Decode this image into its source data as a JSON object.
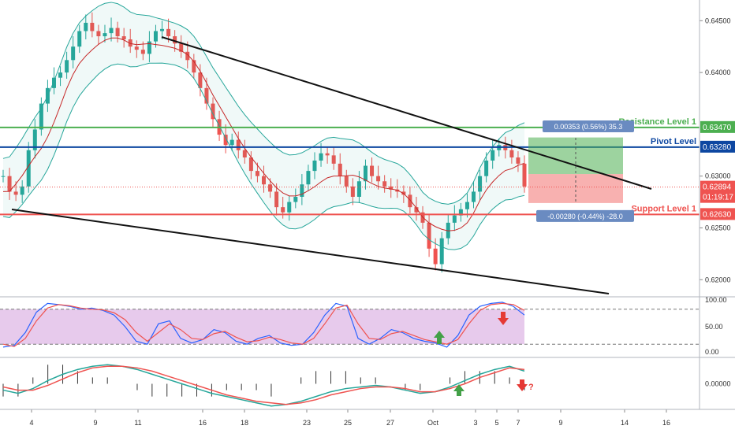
{
  "chart_data": {
    "type": "candlestick",
    "panes": [
      "price",
      "stochastic",
      "macd"
    ],
    "x_tick_labels": [
      "4",
      "9",
      "11",
      "16",
      "18",
      "23",
      "25",
      "27",
      "Oct",
      "3",
      "5",
      "7",
      "9",
      "14",
      "16"
    ],
    "price_axis": {
      "ylim": [
        0.6185,
        0.647
      ],
      "ticks": [
        "0.64500",
        "0.64000",
        "0.63000",
        "0.62500",
        "0.62000"
      ],
      "tick_values": [
        0.645,
        0.64,
        0.63,
        0.625,
        0.62
      ]
    },
    "levels": [
      {
        "label": "Resistance Level 1",
        "value": 0.6347,
        "tag": "0.63470",
        "color": "#4caf50"
      },
      {
        "label": "Pivot Level",
        "value": 0.6328,
        "tag": "0.63280",
        "color": "#0d47a1"
      },
      {
        "label": "Support Level 1",
        "value": 0.6263,
        "tag": "0.62630",
        "color": "#ef5350"
      }
    ],
    "last_price": {
      "value": 0.62894,
      "tag": "0.62894",
      "countdown": "01:19:17",
      "color": "#ef5350"
    },
    "measure_up": {
      "text": "0.00353 (0.56%) 35.3"
    },
    "measure_down": {
      "text": "-0.00280 (-0.44%) -28.0"
    },
    "close_series": [
      0.63,
      0.6285,
      0.6282,
      0.629,
      0.6325,
      0.6345,
      0.637,
      0.6385,
      0.6395,
      0.64,
      0.6412,
      0.6425,
      0.644,
      0.6448,
      0.644,
      0.6435,
      0.6438,
      0.6443,
      0.6435,
      0.6432,
      0.6425,
      0.6422,
      0.6418,
      0.643,
      0.644,
      0.6442,
      0.6435,
      0.6428,
      0.642,
      0.6412,
      0.64,
      0.6385,
      0.637,
      0.6355,
      0.634,
      0.633,
      0.6335,
      0.6325,
      0.6318,
      0.6305,
      0.63,
      0.6292,
      0.6285,
      0.627,
      0.6265,
      0.6275,
      0.628,
      0.6292,
      0.6305,
      0.6315,
      0.6322,
      0.632,
      0.6312,
      0.63,
      0.629,
      0.628,
      0.6295,
      0.631,
      0.63,
      0.6295,
      0.629,
      0.6287,
      0.6285,
      0.6282,
      0.627,
      0.6265,
      0.6255,
      0.623,
      0.6215,
      0.624,
      0.6255,
      0.6262,
      0.6268,
      0.6275,
      0.6285,
      0.63,
      0.6315,
      0.6325,
      0.633,
      0.6325,
      0.6318,
      0.6312,
      0.629
    ],
    "stochastic_axis": {
      "ylim": [
        0,
        100
      ],
      "ticks": [
        "100.00",
        "50.00",
        "0.00"
      ],
      "tick_values": [
        100,
        50,
        0
      ],
      "band": [
        20,
        80
      ]
    },
    "stochastic": {
      "k": [
        15,
        18,
        40,
        75,
        90,
        88,
        85,
        80,
        82,
        78,
        70,
        50,
        25,
        20,
        55,
        60,
        30,
        22,
        28,
        45,
        40,
        25,
        20,
        30,
        35,
        22,
        18,
        20,
        40,
        70,
        90,
        85,
        30,
        20,
        30,
        45,
        40,
        30,
        25,
        22,
        15,
        35,
        70,
        85,
        90,
        92,
        85,
        70
      ],
      "d": [
        20,
        16,
        30,
        60,
        82,
        88,
        86,
        82,
        80,
        79,
        74,
        62,
        40,
        25,
        40,
        55,
        45,
        30,
        28,
        38,
        42,
        32,
        24,
        26,
        32,
        28,
        22,
        20,
        30,
        55,
        82,
        87,
        55,
        30,
        28,
        38,
        42,
        35,
        28,
        24,
        20,
        28,
        55,
        78,
        88,
        90,
        88,
        78
      ]
    },
    "macd_axis": {
      "ticks": [
        "0.00000"
      ],
      "tick_values": [
        0
      ]
    },
    "macd": {
      "macd_line": [
        -0.0004,
        -0.0006,
        -0.0003,
        0.0002,
        0.0006,
        0.0009,
        0.0011,
        0.0012,
        0.0011,
        0.0009,
        0.0006,
        0.0003,
        0.0,
        -0.0003,
        -0.0006,
        -0.0008,
        -0.001,
        -0.0012,
        -0.0014,
        -0.0013,
        -0.0011,
        -0.0008,
        -0.0005,
        -0.0003,
        -0.0002,
        -0.0001,
        -0.0002,
        -0.0004,
        -0.0006,
        -0.0005,
        -0.0002,
        0.0002,
        0.0006,
        0.0009,
        0.0011,
        0.0008
      ],
      "signal_line": [
        -0.0002,
        -0.0004,
        -0.0004,
        -0.0001,
        0.0003,
        0.0007,
        0.001,
        0.0011,
        0.0011,
        0.001,
        0.0008,
        0.0005,
        0.0002,
        -0.0001,
        -0.0004,
        -0.0007,
        -0.0009,
        -0.0011,
        -0.0012,
        -0.0013,
        -0.0012,
        -0.001,
        -0.0007,
        -0.0005,
        -0.0003,
        -0.0002,
        -0.0002,
        -0.0003,
        -0.0005,
        -0.0005,
        -0.0003,
        0.0,
        0.0004,
        0.0007,
        0.001,
        0.0009
      ]
    },
    "annotations": [
      "?"
    ]
  }
}
